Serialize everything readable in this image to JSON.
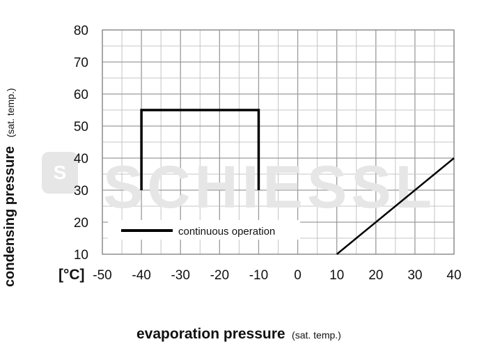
{
  "chart_data": {
    "type": "line",
    "unit_label": "[°C]",
    "xlabel": "evaporation pressure",
    "xlabel_note": "(sat. temp.)",
    "ylabel": "condensing pressure",
    "ylabel_note": "(sat. temp.)",
    "xlim": [
      -50,
      40
    ],
    "ylim": [
      10,
      80
    ],
    "x_ticks": [
      -50,
      -40,
      -30,
      -20,
      -10,
      0,
      10,
      20,
      30,
      40
    ],
    "y_ticks": [
      10,
      20,
      30,
      40,
      50,
      60,
      70,
      80
    ],
    "x_minor_step": 5,
    "y_minor_step": 5,
    "grid": true,
    "legend": {
      "entries": [
        "continuous operation"
      ],
      "placement": "bottom-left"
    },
    "series": [
      {
        "name": "continuous operation",
        "color": "#000000",
        "points": [
          [
            -40,
            30
          ],
          [
            -40,
            55
          ],
          [
            -10,
            55
          ],
          [
            -10,
            30
          ]
        ]
      },
      {
        "color": "#000000",
        "points": [
          [
            10,
            10
          ],
          [
            40,
            40
          ]
        ]
      }
    ],
    "watermark": "SCHIESSL"
  }
}
